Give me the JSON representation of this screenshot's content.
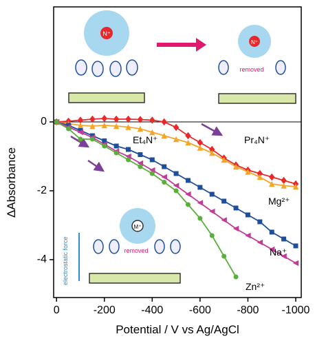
{
  "chart_data": {
    "type": "line",
    "x_label": "Potential / V vs Ag/AgCl",
    "y_label": "ΔAbsorbance",
    "annotations": [
      "removed",
      "removed",
      "electrostatic force",
      "N⁺",
      "N⁺",
      "M⁺"
    ],
    "xlim": [
      12,
      -1023
    ],
    "ylim": [
      -5.1,
      3.34
    ],
    "xticks": [
      0,
      -200,
      -400,
      -600,
      -800,
      -1000
    ],
    "yticks": [
      0,
      -2,
      -4
    ],
    "x": [
      0,
      -50,
      -100,
      -150,
      -200,
      -250,
      -300,
      -350,
      -400,
      -450,
      -500,
      -550,
      -600,
      -650,
      -700,
      -750,
      -800,
      -850,
      -900,
      -950,
      -1000
    ],
    "series": [
      {
        "name": "Pr₄N⁺",
        "color": "#e8282b",
        "marker": "diamond",
        "values": [
          0,
          0.02,
          0.05,
          0.08,
          0.1,
          0.08,
          0.08,
          0.07,
          0.05,
          0.0,
          -0.16,
          -0.4,
          -0.6,
          -0.8,
          -1.05,
          -1.25,
          -1.4,
          -1.5,
          -1.6,
          -1.7,
          -1.8
        ]
      },
      {
        "name": "Et₄N⁺",
        "color": "#f4a629",
        "marker": "triangle",
        "values": [
          0,
          -0.05,
          -0.1,
          -0.12,
          -0.1,
          -0.12,
          -0.15,
          -0.2,
          -0.3,
          -0.4,
          -0.5,
          -0.6,
          -0.75,
          -0.9,
          -1.1,
          -1.3,
          -1.45,
          -1.6,
          -1.8,
          -1.85,
          -1.88
        ]
      },
      {
        "name": "Mg²⁺",
        "color": "#1f4e9c",
        "marker": "square",
        "values": [
          0,
          -0.1,
          -0.25,
          -0.4,
          -0.55,
          -0.7,
          -0.8,
          -0.95,
          -1.1,
          -1.3,
          -1.5,
          -1.7,
          -1.9,
          -2.1,
          -2.3,
          -2.5,
          -2.7,
          -2.9,
          -3.2,
          -3.4,
          -3.6
        ]
      },
      {
        "name": "Na⁺",
        "color": "#c03c97",
        "marker": "triangle-left",
        "values": [
          0,
          -0.15,
          -0.3,
          -0.45,
          -0.65,
          -0.85,
          -1.0,
          -1.2,
          -1.4,
          -1.6,
          -1.85,
          -2.1,
          -2.35,
          -2.6,
          -2.85,
          -3.1,
          -3.3,
          -3.5,
          -3.7,
          -3.9,
          -4.1
        ]
      },
      {
        "name": "Zn²⁺",
        "color": "#5aae3c",
        "marker": "circle",
        "values": [
          0,
          -0.2,
          -0.5,
          -0.5,
          -0.7,
          -0.9,
          -1.1,
          -1.3,
          -1.5,
          -1.75,
          -2.0,
          -2.4,
          -2.8,
          -3.3,
          -3.9,
          -4.5,
          null,
          null,
          null,
          null,
          null
        ]
      }
    ]
  }
}
